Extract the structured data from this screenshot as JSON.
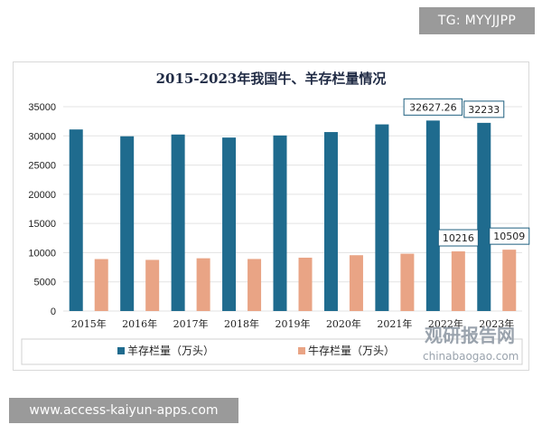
{
  "overlay": {
    "tg_label": "TG: MYYJJPP",
    "url_label": "www.access-kaiyun-apps.com"
  },
  "watermark": {
    "name_cn": "观研报告网",
    "name_en": "chinabaogao.com"
  },
  "colors": {
    "sheep": "#1f6b8e",
    "cattle": "#e9a485",
    "grid": "#e3e3e3",
    "callout_border": "#1f5f7f"
  },
  "chart_data": {
    "type": "bar",
    "title": "2015-2023年我国牛、羊存栏量情况",
    "categories": [
      "2015年",
      "2016年",
      "2017年",
      "2018年",
      "2019年",
      "2020年",
      "2021年",
      "2022年",
      "2023年"
    ],
    "series": [
      {
        "name": "羊存栏量（万头）",
        "values": [
          31100,
          29930,
          30232,
          29714,
          30072,
          30655,
          31969,
          32627.26,
          32233
        ]
      },
      {
        "name": "牛存栏量（万头）",
        "values": [
          8900,
          8760,
          9038,
          8915,
          9139,
          9562,
          9817,
          10216,
          10509
        ]
      }
    ],
    "data_labels": [
      {
        "series": 0,
        "index": 7,
        "text": "32627.26"
      },
      {
        "series": 0,
        "index": 8,
        "text": "32233"
      },
      {
        "series": 1,
        "index": 7,
        "text": "10216"
      },
      {
        "series": 1,
        "index": 8,
        "text": "10509"
      }
    ],
    "ylim": [
      0,
      35000
    ],
    "yticks": [
      "0",
      "5000",
      "10000",
      "15000",
      "20000",
      "25000",
      "30000",
      "35000"
    ],
    "xlabel": "",
    "ylabel": "",
    "grid": true,
    "legend": "bottom"
  }
}
